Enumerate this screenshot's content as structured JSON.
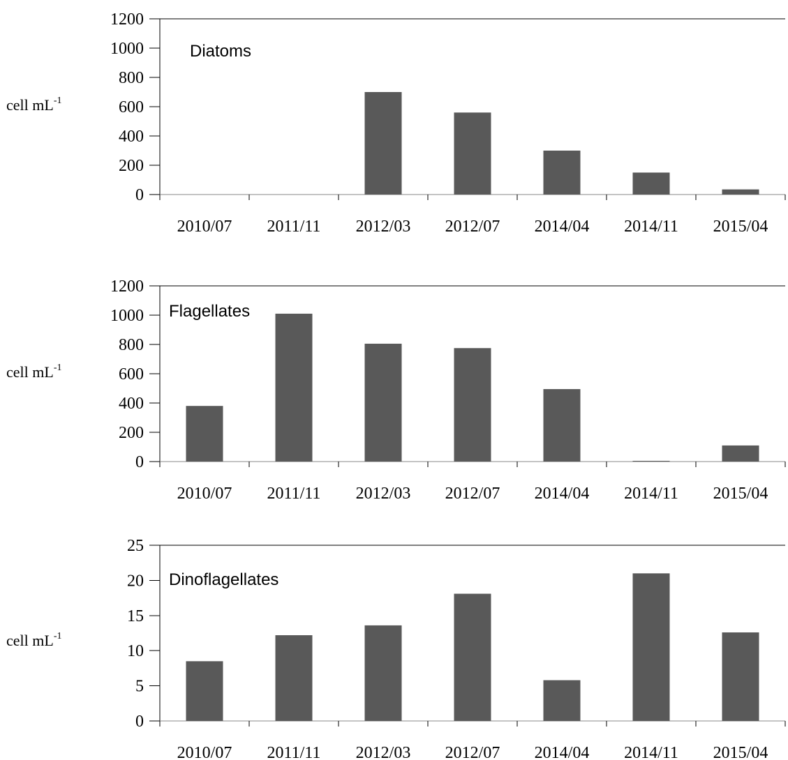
{
  "chart_data": [
    {
      "type": "bar",
      "title": "Diatoms",
      "categories": [
        "2010/07",
        "2011/11",
        "2012/03",
        "2012/07",
        "2014/04",
        "2014/11",
        "2015/04"
      ],
      "values": [
        0,
        0,
        700,
        560,
        300,
        150,
        35
      ],
      "ylabel": "cell mL",
      "ylabel_superscript": "-1",
      "ylim": [
        0,
        1200
      ],
      "yticks": [
        0,
        200,
        400,
        600,
        800,
        1000,
        1200
      ],
      "bar_color": "#595959",
      "grid": false
    },
    {
      "type": "bar",
      "title": "Flagellates",
      "categories": [
        "2010/07",
        "2011/11",
        "2012/03",
        "2012/07",
        "2014/04",
        "2014/11",
        "2015/04"
      ],
      "values": [
        380,
        1010,
        805,
        775,
        495,
        5,
        110
      ],
      "ylabel": "cell mL",
      "ylabel_superscript": "-1",
      "ylim": [
        0,
        1200
      ],
      "yticks": [
        0,
        200,
        400,
        600,
        800,
        1000,
        1200
      ],
      "bar_color": "#595959",
      "grid": false
    },
    {
      "type": "bar",
      "title": "Dinoflagellates",
      "categories": [
        "2010/07",
        "2011/11",
        "2012/03",
        "2012/07",
        "2014/04",
        "2014/11",
        "2015/04"
      ],
      "values": [
        8.5,
        12.2,
        13.6,
        18.1,
        5.8,
        21,
        12.6
      ],
      "ylabel": "cell mL",
      "ylabel_superscript": "-1",
      "ylim": [
        0,
        25
      ],
      "yticks": [
        0,
        5,
        10,
        15,
        20,
        25
      ],
      "bar_color": "#595959",
      "grid": false
    }
  ]
}
